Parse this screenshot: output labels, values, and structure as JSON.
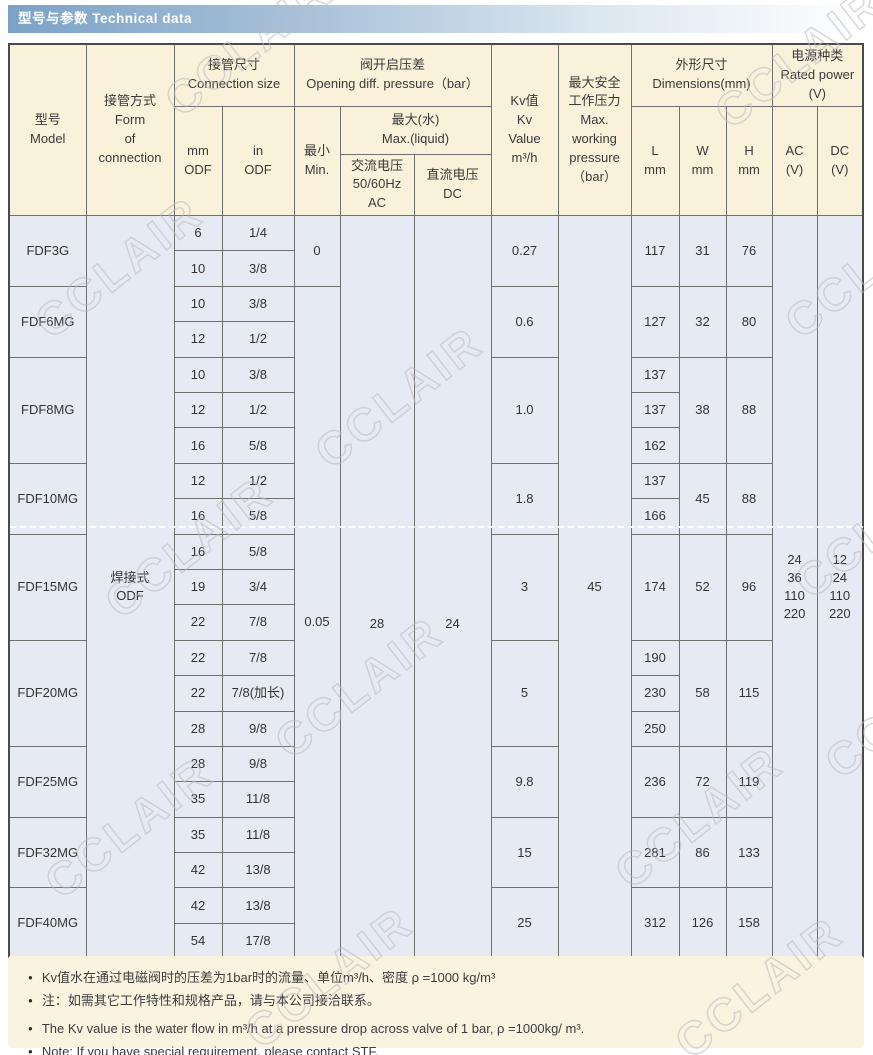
{
  "title": {
    "zh": "型号与参数",
    "en": "Technical data"
  },
  "watermark": "CCLAIR",
  "colors": {
    "title_gradient_start": "#7ba2c6",
    "header_bg": "#faf1da",
    "body_bg": "#e6ebf3",
    "notes_bg": "#faf3e0",
    "grid": "#707070"
  },
  "table": {
    "headers": {
      "model": "型号\nModel",
      "form_of_connection": "接管方式\nForm\nof\nconnection",
      "connection_size": "接管尺寸\nConnection size",
      "mm_odf": "mm\nODF",
      "in_odf": "in\nODF",
      "opening_diff_pressure": "阀开启压差\nOpening diff. pressure（bar）",
      "min": "最小\nMin.",
      "max_water": "最大(水)\nMax.(liquid)",
      "ac_voltage": "交流电压\n50/60Hz\nAC",
      "dc_voltage": "直流电压\nDC",
      "kv_value": "Kv值\nKv\nValue\nm³/h",
      "max_working_pressure": "最大安全\n工作压力\nMax.\nworking\npressure\n（bar）",
      "dimensions": "外形尺寸\nDimensions(mm)",
      "l_mm": "L\nmm",
      "w_mm": "W\nmm",
      "h_mm": "H\nmm",
      "rated_power": "电源种类\nRated power\n(V)",
      "ac_v": "AC\n(V)",
      "dc_v": "DC\n(V)"
    },
    "connection_form": "焊接式\nODF",
    "min_values": [
      "0",
      "0.05"
    ],
    "ac_max_pressure": "28",
    "dc_max_pressure": "24",
    "max_working_pressure": "45",
    "ac_voltages": [
      "24",
      "36",
      "110",
      "220"
    ],
    "dc_voltages": [
      "12",
      "24",
      "110",
      "220"
    ],
    "groups": [
      {
        "model": "FDF3G",
        "kv": "0.27",
        "l": [
          "117"
        ],
        "w": "31",
        "h": "76",
        "sizes": [
          {
            "mm": "6",
            "in": "1/4"
          },
          {
            "mm": "10",
            "in": "3/8"
          }
        ]
      },
      {
        "model": "FDF6MG",
        "kv": "0.6",
        "l": [
          "127"
        ],
        "w": "32",
        "h": "80",
        "sizes": [
          {
            "mm": "10",
            "in": "3/8"
          },
          {
            "mm": "12",
            "in": "1/2"
          }
        ]
      },
      {
        "model": "FDF8MG",
        "kv": "1.0",
        "l": [
          "137",
          "137",
          "162"
        ],
        "w": "38",
        "h": "88",
        "sizes": [
          {
            "mm": "10",
            "in": "3/8"
          },
          {
            "mm": "12",
            "in": "1/2"
          },
          {
            "mm": "16",
            "in": "5/8"
          }
        ]
      },
      {
        "model": "FDF10MG",
        "kv": "1.8",
        "l": [
          "137",
          "166"
        ],
        "w": "45",
        "h": "88",
        "sizes": [
          {
            "mm": "12",
            "in": "1/2"
          },
          {
            "mm": "16",
            "in": "5/8"
          }
        ]
      },
      {
        "model": "FDF15MG",
        "kv": "3",
        "l": [
          "174"
        ],
        "w": "52",
        "h": "96",
        "sizes": [
          {
            "mm": "16",
            "in": "5/8"
          },
          {
            "mm": "19",
            "in": "3/4"
          },
          {
            "mm": "22",
            "in": "7/8"
          }
        ]
      },
      {
        "model": "FDF20MG",
        "kv": "5",
        "l": [
          "190",
          "230",
          "250"
        ],
        "w": "58",
        "h": "115",
        "sizes": [
          {
            "mm": "22",
            "in": "7/8"
          },
          {
            "mm": "22",
            "in": "7/8(加长)"
          },
          {
            "mm": "28",
            "in": "9/8"
          }
        ]
      },
      {
        "model": "FDF25MG",
        "kv": "9.8",
        "l": [
          "236"
        ],
        "w": "72",
        "h": "119",
        "sizes": [
          {
            "mm": "28",
            "in": "9/8"
          },
          {
            "mm": "35",
            "in": "11/8"
          }
        ]
      },
      {
        "model": "FDF32MG",
        "kv": "15",
        "l": [
          "281"
        ],
        "w": "86",
        "h": "133",
        "sizes": [
          {
            "mm": "35",
            "in": "11/8"
          },
          {
            "mm": "42",
            "in": "13/8"
          }
        ]
      },
      {
        "model": "FDF40MG",
        "kv": "25",
        "l": [
          "312"
        ],
        "w": "126",
        "h": "158",
        "sizes": [
          {
            "mm": "42",
            "in": "13/8"
          },
          {
            "mm": "54",
            "in": "17/8"
          }
        ]
      }
    ]
  },
  "notes": [
    "Kv值水在通过电磁阀时的压差为1bar时的流量、单位m³/h、密度 ρ =1000 kg/m³",
    "注：如需其它工作特性和规格产品，请与本公司接洽联系。",
    "The Kv value is the water flow in m³/h at a pressure drop across valve of 1 bar, ρ =1000kg/ m³.",
    "Note: If you have special requirement, please contact STF."
  ]
}
